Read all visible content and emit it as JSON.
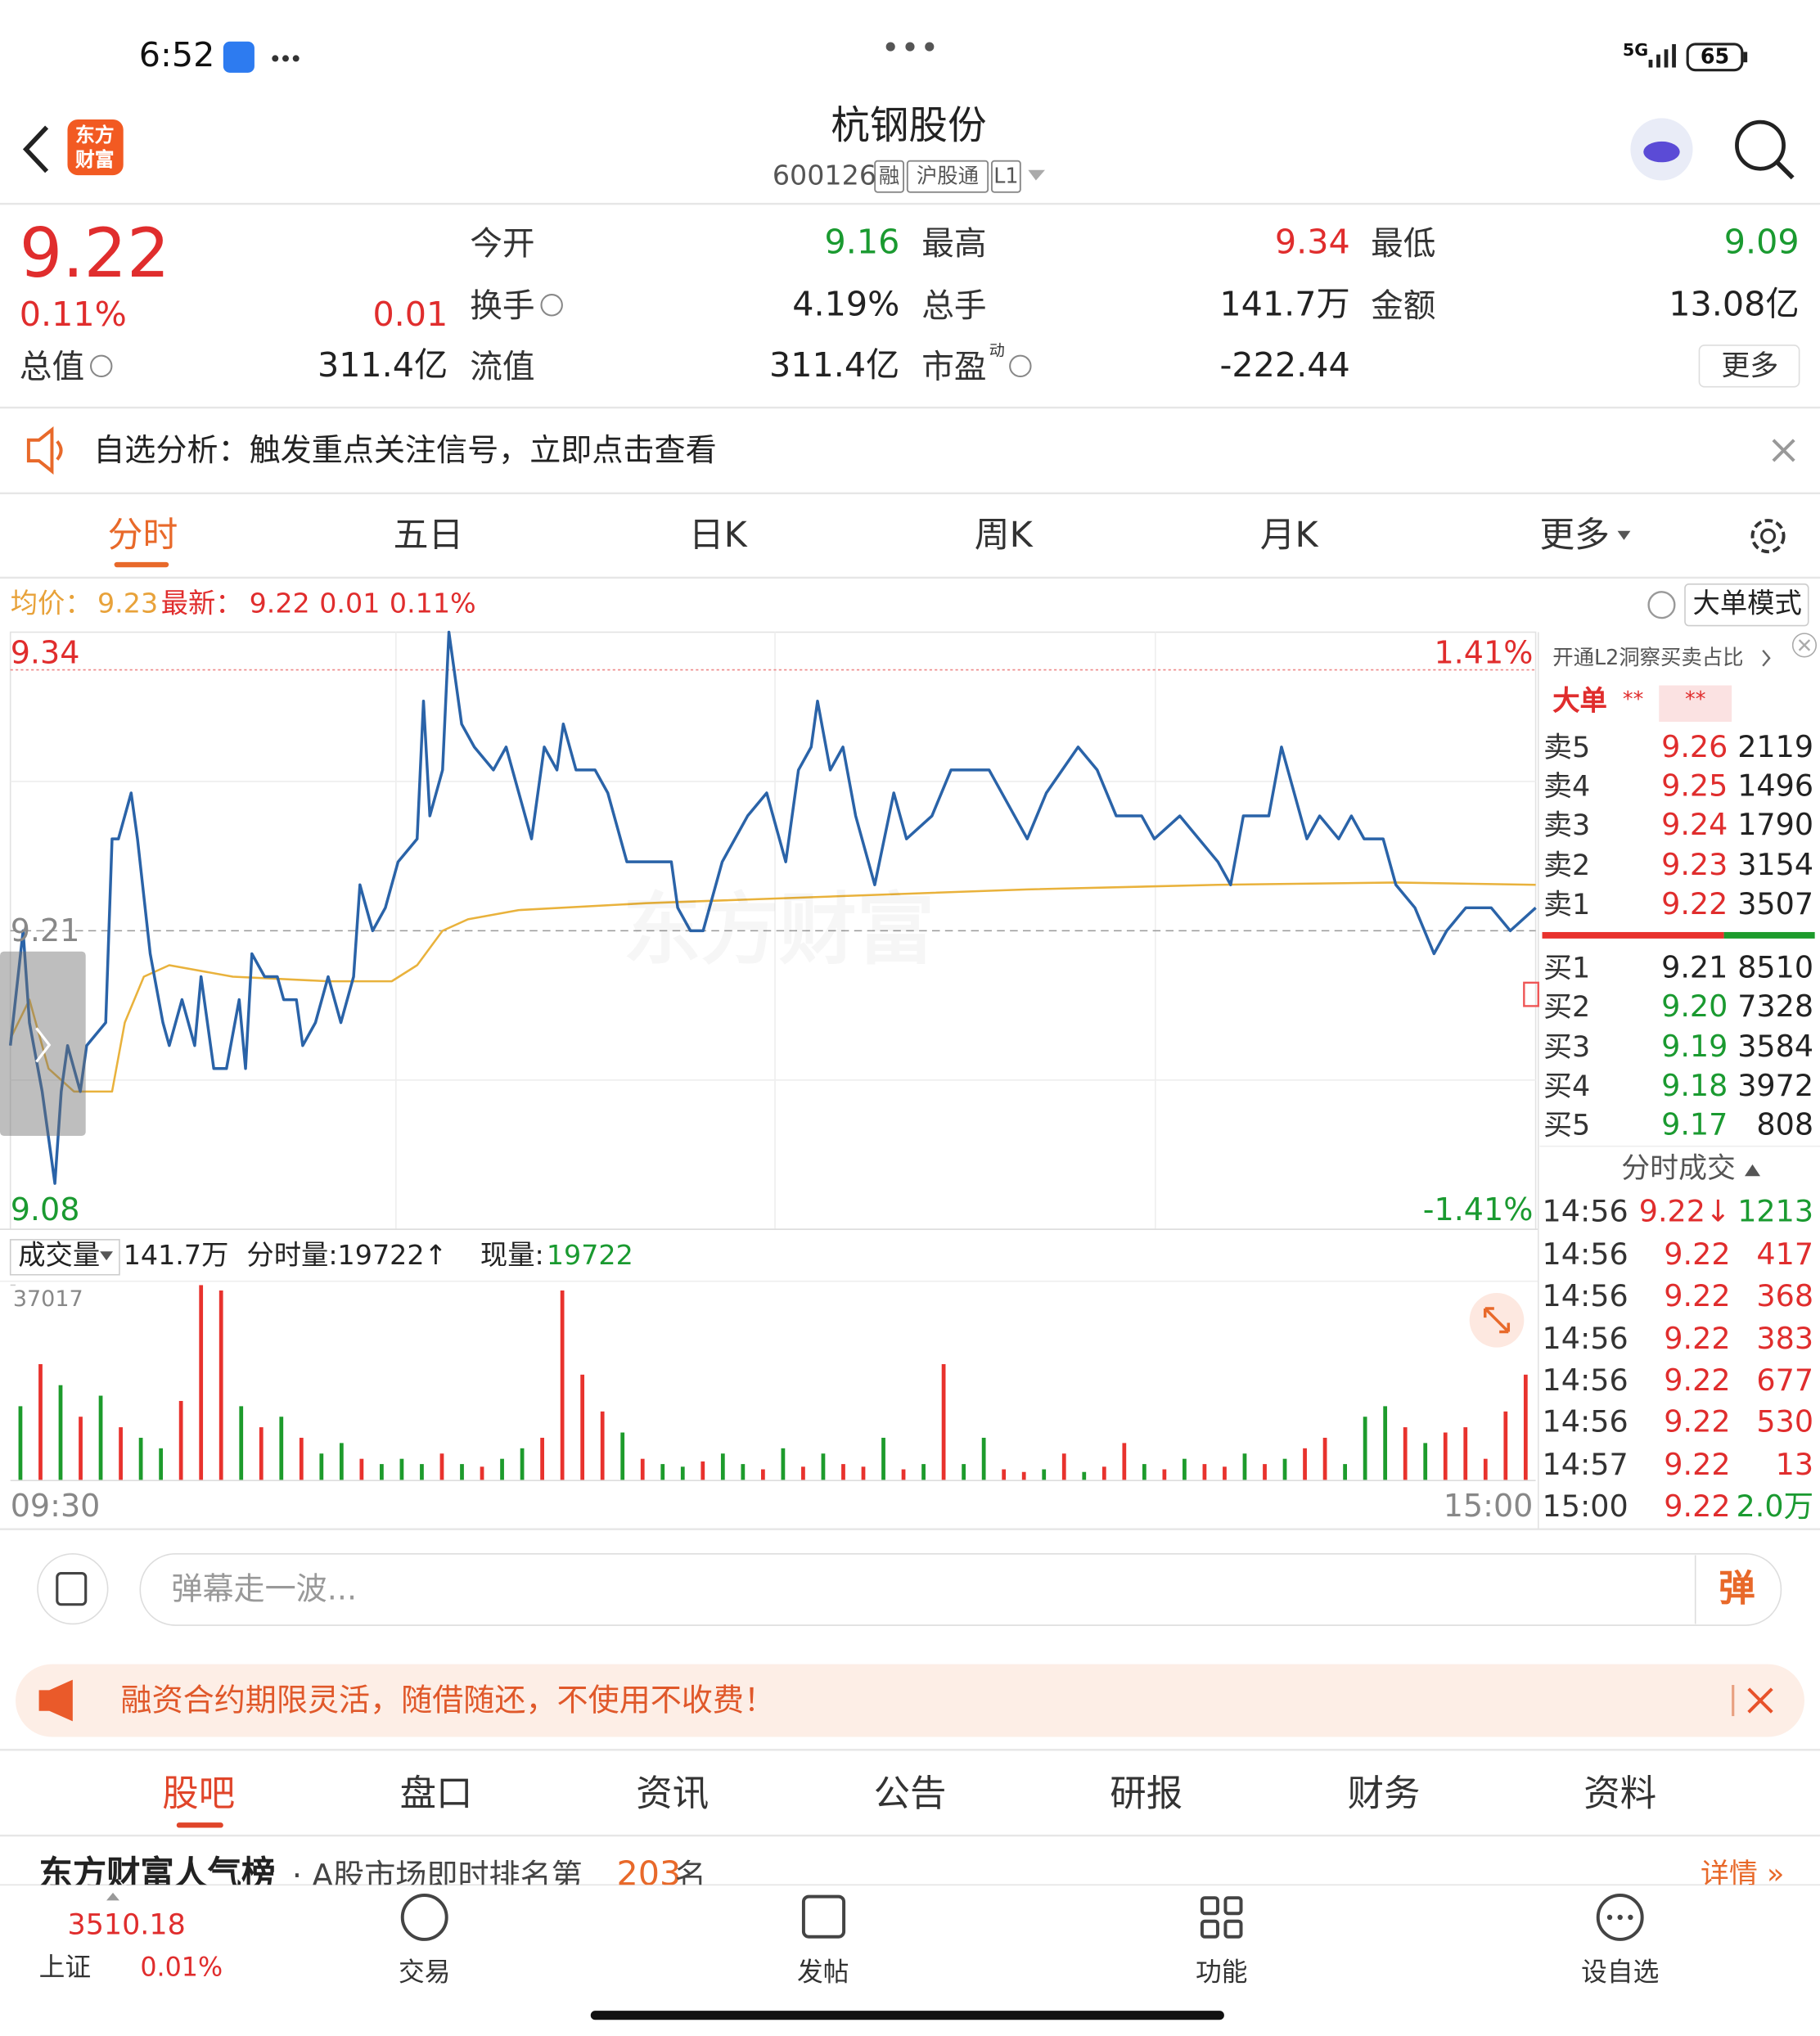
{
  "status_bar": {
    "time": "6:52",
    "network": "5G",
    "battery": "65"
  },
  "header": {
    "logo": [
      "东方",
      "财富"
    ],
    "title": "杭钢股份",
    "code": "600126",
    "tags": [
      "融",
      "沪股通",
      "L1"
    ]
  },
  "quote": {
    "price": "9.22",
    "change_pct": "0.11%",
    "change": "0.01",
    "stats": [
      {
        "label": "今开",
        "value": "9.16"
      },
      {
        "label": "最高",
        "value": "9.34"
      },
      {
        "label": "最低",
        "value": "9.09"
      },
      {
        "label": "换手",
        "value": "4.19%"
      },
      {
        "label": "总手",
        "value": "141.7万"
      },
      {
        "label": "金额",
        "value": "13.08亿"
      },
      {
        "label": "总值",
        "value": "311.4亿"
      },
      {
        "label": "流值",
        "value": "311.4亿"
      },
      {
        "label": "市盈",
        "value": "-222.44",
        "sup": "动"
      }
    ],
    "more": "更多"
  },
  "notice": "自选分析：触发重点关注信号，立即点击查看",
  "tabs": [
    "分时",
    "五日",
    "日K",
    "周K",
    "月K",
    "更多"
  ],
  "chart_info": {
    "avg_label": "均价：",
    "avg": "9.23",
    "latest_label": "最新：",
    "latest": "9.22",
    "change": "0.01",
    "change_pct": "0.11%",
    "mode": "大单模式"
  },
  "chart": {
    "ylim": [
      9.08,
      9.34
    ],
    "yticks": [
      9.34,
      9.21,
      9.08
    ],
    "pct_labels": [
      "1.41%",
      "-1.41%"
    ],
    "xlim": [
      0,
      240
    ],
    "time_labels": [
      "09:30",
      "15:00"
    ],
    "watermark": "东方财富",
    "price": {
      "color": "#2a63a8",
      "x": [
        0,
        2,
        3,
        5,
        7,
        8,
        9,
        11,
        12,
        15,
        16,
        17,
        19,
        20,
        22,
        24,
        25,
        27,
        29,
        30,
        32,
        34,
        36,
        37,
        38,
        40,
        42,
        43,
        45,
        46,
        48,
        50,
        52,
        54,
        55,
        57,
        59,
        61,
        64,
        65,
        66,
        68,
        69,
        71,
        73,
        76,
        78,
        80,
        82,
        84,
        86,
        87,
        89,
        92,
        94,
        96,
        97,
        104,
        105,
        107,
        109,
        112,
        116,
        119,
        122,
        124,
        126,
        127,
        129,
        131,
        133,
        136,
        139,
        141,
        145,
        148,
        151,
        154,
        158,
        160,
        163,
        168,
        171,
        174,
        178,
        180,
        184,
        187,
        190,
        192,
        194,
        198,
        200,
        204,
        206,
        209,
        211,
        213,
        216,
        218,
        221,
        224,
        226,
        229,
        233,
        236,
        240
      ],
      "values": [
        9.16,
        9.21,
        9.17,
        9.14,
        9.1,
        9.14,
        9.16,
        9.14,
        9.16,
        9.17,
        9.25,
        9.25,
        9.27,
        9.25,
        9.2,
        9.17,
        9.16,
        9.18,
        9.16,
        9.19,
        9.15,
        9.15,
        9.18,
        9.15,
        9.2,
        9.19,
        9.19,
        9.18,
        9.18,
        9.16,
        9.17,
        9.19,
        9.17,
        9.19,
        9.23,
        9.21,
        9.22,
        9.24,
        9.25,
        9.31,
        9.26,
        9.28,
        9.34,
        9.3,
        9.29,
        9.28,
        9.29,
        9.27,
        9.25,
        9.29,
        9.28,
        9.3,
        9.28,
        9.28,
        9.27,
        9.25,
        9.24,
        9.24,
        9.22,
        9.21,
        9.21,
        9.24,
        9.26,
        9.27,
        9.24,
        9.28,
        9.29,
        9.31,
        9.28,
        9.29,
        9.26,
        9.23,
        9.27,
        9.25,
        9.26,
        9.28,
        9.28,
        9.28,
        9.26,
        9.25,
        9.27,
        9.29,
        9.28,
        9.26,
        9.26,
        9.25,
        9.26,
        9.25,
        9.24,
        9.23,
        9.26,
        9.26,
        9.29,
        9.25,
        9.26,
        9.25,
        9.26,
        9.25,
        9.25,
        9.23,
        9.22,
        9.2,
        9.21,
        9.22,
        9.22,
        9.21,
        9.22
      ]
    },
    "avg": {
      "color": "#e9b23c",
      "x": [
        0,
        3,
        6,
        10,
        16,
        18,
        21,
        25,
        35,
        50,
        60,
        64,
        68,
        72,
        80,
        100,
        130,
        160,
        190,
        218,
        240
      ],
      "values": [
        9.163,
        9.18,
        9.15,
        9.14,
        9.14,
        9.17,
        9.19,
        9.195,
        9.19,
        9.188,
        9.188,
        9.195,
        9.21,
        9.215,
        9.219,
        9.222,
        9.225,
        9.228,
        9.23,
        9.231,
        9.23
      ]
    },
    "volume": {
      "label": "成交量",
      "total": "141.7万",
      "period": "分时量:19722↑",
      "current_label": "现量:",
      "current": "19722",
      "ylim": [
        0,
        37017
      ],
      "yticks": [
        37017
      ],
      "values": [
        14000,
        22000,
        18000,
        12000,
        16000,
        10000,
        8000,
        6000,
        15000,
        37017,
        36000,
        14000,
        10000,
        12000,
        8000,
        5000,
        7000,
        4000,
        3000,
        4000,
        3000,
        5000,
        3000,
        2500,
        4000,
        6000,
        8000,
        36000,
        20000,
        13000,
        9000,
        4000,
        3000,
        2500,
        3500,
        5000,
        3000,
        2000,
        6000,
        2500,
        5000,
        3000,
        2500,
        8000,
        2000,
        3000,
        22000,
        3000,
        8000,
        2000,
        1500,
        2000,
        5000,
        1500,
        2500,
        7000,
        3000,
        2000,
        4000,
        3000,
        2500,
        5000,
        3000,
        4000,
        6000,
        8000,
        3000,
        12000,
        14000,
        10000,
        7000,
        9000,
        10000,
        4000,
        13000,
        20000
      ],
      "colors": [
        "#1d9b2c",
        "#e8322d",
        "#1d9b2c",
        "#e8322d",
        "#1d9b2c",
        "#e8322d",
        "#1d9b2c",
        "#1d9b2c",
        "#e8322d",
        "#e8322d",
        "#e8322d",
        "#1d9b2c",
        "#e8322d",
        "#1d9b2c",
        "#e8322d",
        "#1d9b2c",
        "#1d9b2c",
        "#e8322d",
        "#1d9b2c",
        "#1d9b2c",
        "#1d9b2c",
        "#e8322d",
        "#1d9b2c",
        "#e8322d",
        "#1d9b2c",
        "#1d9b2c",
        "#e8322d",
        "#e8322d",
        "#e8322d",
        "#e8322d",
        "#1d9b2c",
        "#e8322d",
        "#1d9b2c",
        "#1d9b2c",
        "#e8322d",
        "#1d9b2c",
        "#1d9b2c",
        "#e8322d",
        "#1d9b2c",
        "#e8322d",
        "#1d9b2c",
        "#e8322d",
        "#e8322d",
        "#1d9b2c",
        "#e8322d",
        "#1d9b2c",
        "#e8322d",
        "#1d9b2c",
        "#1d9b2c",
        "#e8322d",
        "#e8322d",
        "#1d9b2c",
        "#e8322d",
        "#1d9b2c",
        "#e8322d",
        "#e8322d",
        "#1d9b2c",
        "#e8322d",
        "#1d9b2c",
        "#e8322d",
        "#e8322d",
        "#1d9b2c",
        "#e8322d",
        "#1d9b2c",
        "#e8322d",
        "#e8322d",
        "#1d9b2c",
        "#1d9b2c",
        "#1d9b2c",
        "#e8322d",
        "#1d9b2c",
        "#e8322d",
        "#e8322d",
        "#e8322d",
        "#e8322d",
        "#e8322d"
      ]
    }
  },
  "order_book": {
    "l2": "开通L2洞察买卖占比",
    "big_order": "大单",
    "big_order_values": [
      "**",
      "**"
    ],
    "asks": [
      {
        "label": "卖5",
        "price": "9.26",
        "volume": "2119"
      },
      {
        "label": "卖4",
        "price": "9.25",
        "volume": "1496"
      },
      {
        "label": "卖3",
        "price": "9.24",
        "volume": "1790"
      },
      {
        "label": "卖2",
        "price": "9.23",
        "volume": "3154"
      },
      {
        "label": "卖1",
        "price": "9.22",
        "volume": "3507"
      }
    ],
    "bids": [
      {
        "label": "买1",
        "price": "9.21",
        "volume": "8510"
      },
      {
        "label": "买2",
        "price": "9.20",
        "volume": "7328"
      },
      {
        "label": "买3",
        "price": "9.19",
        "volume": "3584"
      },
      {
        "label": "买4",
        "price": "9.18",
        "volume": "3972"
      },
      {
        "label": "买5",
        "price": "9.17",
        "volume": "808"
      }
    ],
    "trades_title": "分时成交",
    "trades": [
      {
        "time": "14:56",
        "price": "9.22↓",
        "volume": "1213"
      },
      {
        "time": "14:56",
        "price": "9.22",
        "volume": "417"
      },
      {
        "time": "14:56",
        "price": "9.22",
        "volume": "368"
      },
      {
        "time": "14:56",
        "price": "9.22",
        "volume": "383"
      },
      {
        "time": "14:56",
        "price": "9.22",
        "volume": "677"
      },
      {
        "time": "14:56",
        "price": "9.22",
        "volume": "530"
      },
      {
        "time": "14:57",
        "price": "9.22",
        "volume": "13"
      },
      {
        "time": "15:00",
        "price": "9.22",
        "volume": "2.0万"
      }
    ]
  },
  "comment": {
    "placeholder": "弹幕走一波...",
    "button": "弹"
  },
  "ad": "融资合约期限灵活，随借随还，不使用不收费！",
  "section_tabs": [
    "股吧",
    "盘口",
    "资讯",
    "公告",
    "研报",
    "财务",
    "资料"
  ],
  "ranking": {
    "title": "东方财富人气榜",
    "text": "· A股市场即时排名第",
    "rank": "203",
    "suffix": "名",
    "link": "详情 »"
  },
  "nav": {
    "index_value": "3510.18",
    "index_name": "上证",
    "index_change": "0.01%",
    "items": [
      "交易",
      "发帖",
      "功能",
      "设自选"
    ]
  }
}
